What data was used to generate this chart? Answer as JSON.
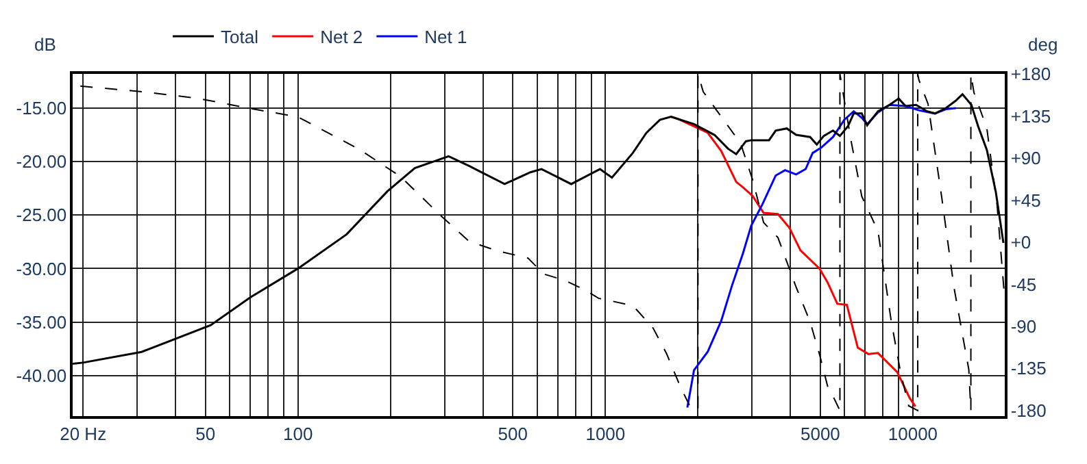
{
  "chart_data": {
    "type": "line",
    "ylabel": "dB",
    "y2label": "deg",
    "xlim": [
      18.5,
      19900
    ],
    "log": "x",
    "xticks": [
      {
        "value": 20,
        "label": "20 Hz"
      },
      {
        "value": 30,
        "label": null
      },
      {
        "value": 40,
        "label": null
      },
      50,
      {
        "value": 60,
        "label": null
      },
      {
        "value": 70,
        "label": null
      },
      {
        "value": 80,
        "label": null
      },
      {
        "value": 90,
        "label": null
      },
      100,
      {
        "value": 200,
        "label": null
      },
      {
        "value": 300,
        "label": null
      },
      {
        "value": 400,
        "label": null
      },
      500,
      {
        "value": 600,
        "label": null
      },
      {
        "value": 700,
        "label": null
      },
      {
        "value": 800,
        "label": null
      },
      {
        "value": 900,
        "label": null
      },
      1000,
      {
        "value": 2000,
        "label": null
      },
      {
        "value": 3000,
        "label": null
      },
      {
        "value": 4000,
        "label": null
      },
      5000,
      {
        "value": 6000,
        "label": null
      },
      {
        "value": 7000,
        "label": null
      },
      {
        "value": 8000,
        "label": null
      },
      {
        "value": 9000,
        "label": null
      },
      10000
    ],
    "ylim": [
      -43.8,
      -11.8
    ],
    "yticks": [
      {
        "value": -15,
        "label": "-15.00"
      },
      {
        "value": -20,
        "label": "-20.00"
      },
      {
        "value": -25,
        "label": "-25.00"
      },
      {
        "value": -30,
        "label": "-30.00"
      },
      {
        "value": -35,
        "label": "-35.00"
      },
      {
        "value": -40,
        "label": "-40.00"
      }
    ],
    "y2lim": [
      -186,
      180
    ],
    "y2ticks": [
      {
        "value": 180,
        "label": "+180"
      },
      {
        "value": 135,
        "label": "+135"
      },
      {
        "value": 90,
        "label": "+90"
      },
      {
        "value": 45,
        "label": "+45"
      },
      {
        "value": 0,
        "label": "+0"
      },
      -45,
      -90,
      -135,
      -180
    ],
    "grid": true,
    "legend": "top left",
    "line_style": "solid",
    "series": [
      {
        "name": "Total",
        "color": "#000000",
        "x": [
          18.5,
          20,
          31,
          52,
          70,
          100,
          144,
          195,
          240,
          309,
          360,
          470,
          570,
          620,
          774,
          960,
          1050,
          1227,
          1360,
          1504,
          1634,
          1942,
          2262,
          2507,
          2664,
          2863,
          2983,
          3405,
          3580,
          3890,
          4170,
          4630,
          4870,
          5130,
          5500,
          5790,
          6150,
          6420,
          6820,
          7100,
          7700,
          8400,
          8990,
          9460,
          10240,
          11130,
          11800,
          12800,
          13800,
          14500,
          15500,
          16300,
          17400,
          18600,
          19700
        ],
        "values": [
          -38.9,
          -38.8,
          -37.8,
          -35.3,
          -32.7,
          -30.0,
          -26.8,
          -22.8,
          -20.6,
          -19.5,
          -20.4,
          -22.1,
          -21.0,
          -20.7,
          -22.1,
          -20.7,
          -21.5,
          -19.2,
          -17.3,
          -16.1,
          -15.8,
          -16.5,
          -17.5,
          -18.8,
          -19.3,
          -18.1,
          -18.0,
          -18.0,
          -17.1,
          -16.9,
          -17.5,
          -17.7,
          -18.4,
          -17.6,
          -17.1,
          -17.6,
          -16.7,
          -15.5,
          -15.5,
          -16.6,
          -15.3,
          -14.7,
          -14.1,
          -14.8,
          -14.7,
          -15.3,
          -15.5,
          -15.0,
          -14.3,
          -13.7,
          -14.7,
          -16.7,
          -18.9,
          -22.8,
          -27.6
        ]
      },
      {
        "name": "Net 2",
        "color": "#ff0000",
        "x": [
          1634,
          1720,
          1942,
          2150,
          2380,
          2664,
          2800,
          3010,
          3270,
          3640,
          3970,
          4310,
          4970,
          5280,
          5680,
          6100,
          6620,
          7170,
          7700,
          8900,
          9760,
          10190
        ],
        "values": [
          -15.8,
          -16.0,
          -16.7,
          -17.3,
          -19.0,
          -21.9,
          -22.4,
          -23.2,
          -24.8,
          -24.9,
          -26.2,
          -28.3,
          -30.0,
          -31.3,
          -33.3,
          -33.4,
          -37.4,
          -38.0,
          -37.9,
          -39.7,
          -42.1,
          -42.9
        ]
      },
      {
        "name": "Net 1",
        "color": "#0000ff",
        "x": [
          1847,
          1942,
          2150,
          2380,
          2580,
          2800,
          2980,
          3240,
          3580,
          3840,
          4170,
          4480,
          4720,
          5030,
          5500,
          5980,
          6420,
          6820,
          7100,
          7700,
          8400,
          9460,
          10450,
          11800,
          12800,
          13800
        ],
        "values": [
          -43.0,
          -39.5,
          -37.8,
          -34.9,
          -31.6,
          -28.6,
          -26.0,
          -24.0,
          -21.3,
          -20.8,
          -21.2,
          -20.7,
          -19.2,
          -18.7,
          -17.7,
          -16.1,
          -15.3,
          -15.9,
          -16.5,
          -15.4,
          -14.7,
          -14.8,
          -15.2,
          -15.5,
          -15.1,
          -15.0
        ]
      },
      {
        "color": "#000000",
        "axis": "y2",
        "line_style": "dashed",
        "x": [
          19.6,
          31,
          47,
          70,
          100,
          159,
          216,
          288,
          360,
          442,
          560,
          630,
          740,
          858,
          950,
          1050,
          1230,
          1430,
          1580,
          1750,
          1880,
          2000,
          2000,
          2080,
          2360,
          2750,
          3010,
          3270,
          3640,
          4170,
          4630,
          4970,
          5280,
          5560,
          5790,
          5790,
          6290,
          6820,
          7700,
          8510,
          9130,
          9690,
          10370,
          10370,
          10450,
          11200,
          12400,
          13600,
          14500,
          15200,
          15440,
          15440,
          15800,
          17400,
          18800,
          19800
        ],
        "values": [
          167,
          161,
          154,
          143,
          134,
          99,
          70,
          30,
          1,
          -9,
          -17,
          -34,
          -41,
          -51,
          -60,
          -63,
          -68,
          -92,
          -119,
          -154,
          -175,
          -180,
          180,
          161,
          136,
          106,
          67,
          21,
          5,
          -48,
          -85,
          -120,
          -154,
          -168,
          -180,
          180,
          109,
          49,
          12,
          -85,
          -140,
          -175,
          -180,
          180,
          174,
          148,
          49,
          -48,
          -99,
          -136,
          -180,
          180,
          160,
          122,
          39,
          -53
        ]
      }
    ]
  }
}
